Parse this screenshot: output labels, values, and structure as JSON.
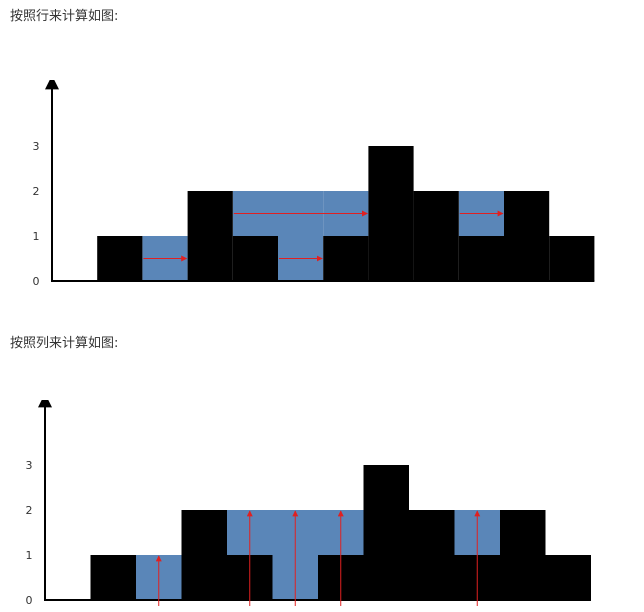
{
  "captions": {
    "by_row": "按照行来计算如图:",
    "by_column": "按照列来计算如图:"
  },
  "colors": {
    "bar": "#000000",
    "water": "#5a86b8",
    "arrow": "#e02020",
    "axis": "#000000"
  },
  "chart_data": [
    {
      "type": "bar",
      "title": "",
      "xlabel": "",
      "ylabel": "",
      "ylim": [
        0,
        3
      ],
      "yticks": [
        "0",
        "1",
        "2",
        "3"
      ],
      "heights": [
        0,
        1,
        0,
        2,
        1,
        0,
        1,
        3,
        2,
        1,
        2,
        1
      ],
      "water": [
        0,
        0,
        1,
        0,
        1,
        2,
        1,
        0,
        0,
        1,
        0,
        0
      ],
      "arrows": "horizontal",
      "arrow_rows": [
        {
          "y": 0.5,
          "from": 2,
          "to": 3
        },
        {
          "y": 0.5,
          "from": 5,
          "to": 6
        },
        {
          "y": 1.5,
          "from": 4,
          "to": 7
        },
        {
          "y": 1.5,
          "from": 9,
          "to": 10
        }
      ]
    },
    {
      "type": "bar",
      "title": "",
      "xlabel": "",
      "ylabel": "",
      "ylim": [
        0,
        3
      ],
      "yticks": [
        "0",
        "1",
        "2",
        "3"
      ],
      "heights": [
        0,
        1,
        0,
        2,
        1,
        0,
        1,
        3,
        2,
        1,
        2,
        1
      ],
      "water": [
        0,
        0,
        1,
        0,
        1,
        2,
        1,
        0,
        0,
        1,
        0,
        0
      ],
      "arrows": "vertical",
      "arrow_cols": [
        {
          "x": 2.5,
          "y_to": 1
        },
        {
          "x": 4.5,
          "y_to": 2
        },
        {
          "x": 5.5,
          "y_to": 2
        },
        {
          "x": 6.5,
          "y_to": 2
        },
        {
          "x": 9.5,
          "y_to": 2
        }
      ]
    }
  ]
}
